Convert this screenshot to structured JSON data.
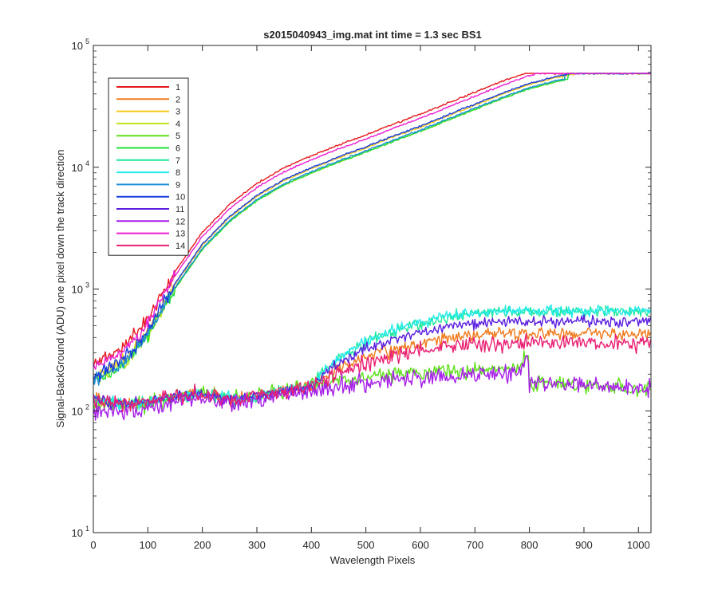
{
  "chart_data": {
    "type": "line",
    "title": "s2015040943_img.mat int time = 1.3 sec   BS1",
    "xlabel": "Wavelength Pixels",
    "ylabel": "Signal-BackGround (ADU) one pixel down the track direction",
    "xlim": [
      0,
      1023
    ],
    "ylim": [
      10,
      100000
    ],
    "yscale": "log",
    "x_ticks": [
      0,
      100,
      200,
      300,
      400,
      500,
      600,
      700,
      800,
      900,
      1000
    ],
    "y_ticks": [
      {
        "value": 10,
        "base": "10",
        "exp": "1"
      },
      {
        "value": 100,
        "base": "10",
        "exp": "2"
      },
      {
        "value": 1000,
        "base": "10",
        "exp": "3"
      },
      {
        "value": 10000,
        "base": "10",
        "exp": "4"
      },
      {
        "value": 100000,
        "base": "10",
        "exp": "5"
      }
    ],
    "grid": false,
    "legend_position": "top-left",
    "series": [
      {
        "name": "1",
        "color": "#e6191d",
        "group": "upper",
        "nearSat": 900,
        "ampScale": 1.35,
        "seed": 11
      },
      {
        "name": "2",
        "color": "#f07c1e",
        "group": "mid",
        "plateau": 430,
        "noise": 0.12,
        "seed": 12
      },
      {
        "name": "3",
        "color": "#f6c81a",
        "group": "upper",
        "nearSat": 880,
        "ampScale": 1.0,
        "seed": 13
      },
      {
        "name": "4",
        "color": "#bde41c",
        "group": "upper",
        "nearSat": 860,
        "ampScale": 0.9,
        "seed": 14
      },
      {
        "name": "5",
        "color": "#5fe01b",
        "group": "low",
        "peak": 290,
        "noise": 0.14,
        "seed": 15
      },
      {
        "name": "6",
        "color": "#1fe03a",
        "group": "upper",
        "nearSat": 870,
        "ampScale": 0.95,
        "seed": 16
      },
      {
        "name": "7",
        "color": "#1ee89a",
        "group": "mid",
        "plateau": 650,
        "noise": 0.1,
        "seed": 17
      },
      {
        "name": "8",
        "color": "#22ebeb",
        "group": "mid",
        "plateau": 660,
        "noise": 0.1,
        "seed": 18
      },
      {
        "name": "9",
        "color": "#1a8fd6",
        "group": "upper",
        "nearSat": 865,
        "ampScale": 1.0,
        "seed": 19
      },
      {
        "name": "10",
        "color": "#1a3be0",
        "group": "upper",
        "nearSat": 870,
        "ampScale": 1.05,
        "seed": 20
      },
      {
        "name": "11",
        "color": "#5a1ee0",
        "group": "mid",
        "plateau": 540,
        "noise": 0.1,
        "seed": 21
      },
      {
        "name": "12",
        "color": "#a71fe8",
        "group": "low",
        "peak": 260,
        "noise": 0.16,
        "seed": 22
      },
      {
        "name": "13",
        "color": "#ea1fd0",
        "group": "upper",
        "nearSat": 905,
        "ampScale": 1.25,
        "seed": 23
      },
      {
        "name": "14",
        "color": "#ea1f72",
        "group": "mid",
        "plateau": 360,
        "noise": 0.14,
        "seed": 24
      }
    ],
    "upper_profile": [
      [
        0,
        190
      ],
      [
        50,
        250
      ],
      [
        100,
        450
      ],
      [
        150,
        1100
      ],
      [
        200,
        2300
      ],
      [
        250,
        3900
      ],
      [
        300,
        5800
      ],
      [
        350,
        7800
      ],
      [
        400,
        9800
      ],
      [
        450,
        12000
      ],
      [
        500,
        14500
      ],
      [
        550,
        17800
      ],
      [
        600,
        21500
      ],
      [
        650,
        26500
      ],
      [
        700,
        32500
      ],
      [
        750,
        40000
      ],
      [
        800,
        48000
      ],
      [
        850,
        55000
      ],
      [
        880,
        58500
      ],
      [
        900,
        59000
      ],
      [
        1023,
        59000
      ]
    ],
    "saturation_level": 59000
  }
}
